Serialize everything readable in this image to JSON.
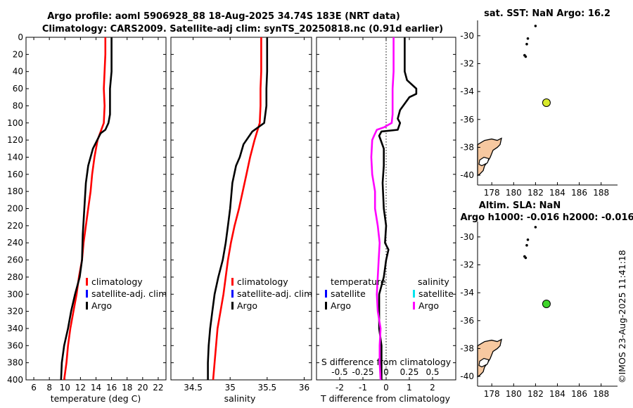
{
  "colors": {
    "argo": "#000000",
    "clim": "#ff0000",
    "sat": "#0000ff",
    "argo_s": "#ff00ff",
    "sat_s": "#00e5ee",
    "land": "#f6c8a0",
    "pt1": "#d8ea2a",
    "pt2": "#3fd52a"
  },
  "header": {
    "title1": "Argo profile: aoml 5906928_88 18-Aug-2025 34.74S 183E (NRT data)",
    "title2": "Climatology: CARS2009. Satellite-adj clim: synTS_20250818.nc (0.91d earlier)"
  },
  "depth_ticks": [
    "0",
    "20",
    "40",
    "60",
    "80",
    "100",
    "120",
    "140",
    "160",
    "180",
    "200",
    "220",
    "240",
    "260",
    "280",
    "300",
    "320",
    "340",
    "360",
    "380",
    "400"
  ],
  "chart_data": [
    {
      "type": "line",
      "name": "temperature-panel",
      "xlabel": "temperature (deg C)",
      "ylabel": "depth",
      "xlim": [
        5,
        23
      ],
      "ylim": [
        400,
        0
      ],
      "xticks": [
        "6",
        "8",
        "10",
        "12",
        "14",
        "16",
        "18",
        "20",
        "22"
      ],
      "legend": {
        "items": [
          {
            "key": "clim",
            "label": "climatology"
          },
          {
            "key": "sat",
            "label": "satellite-adj. clim"
          },
          {
            "key": "argo",
            "label": "Argo"
          }
        ]
      },
      "series": [
        {
          "name": "climatology",
          "key": "clim",
          "points": [
            [
              15.2,
              0
            ],
            [
              15.2,
              20
            ],
            [
              15.1,
              40
            ],
            [
              15.0,
              60
            ],
            [
              15.1,
              80
            ],
            [
              15.0,
              100
            ],
            [
              14.2,
              120
            ],
            [
              13.8,
              140
            ],
            [
              13.5,
              160
            ],
            [
              13.3,
              180
            ],
            [
              13.0,
              200
            ],
            [
              12.7,
              220
            ],
            [
              12.4,
              240
            ],
            [
              12.2,
              260
            ],
            [
              11.8,
              280
            ],
            [
              11.5,
              300
            ],
            [
              11.1,
              320
            ],
            [
              10.7,
              340
            ],
            [
              10.4,
              360
            ],
            [
              10.2,
              380
            ],
            [
              9.9,
              400
            ]
          ]
        },
        {
          "name": "Argo",
          "key": "argo",
          "points": [
            [
              16.0,
              0
            ],
            [
              16.0,
              40
            ],
            [
              15.8,
              60
            ],
            [
              15.8,
              90
            ],
            [
              15.6,
              100
            ],
            [
              15.2,
              108
            ],
            [
              14.6,
              112
            ],
            [
              13.6,
              130
            ],
            [
              13.0,
              150
            ],
            [
              12.7,
              170
            ],
            [
              12.5,
              200
            ],
            [
              12.3,
              230
            ],
            [
              12.2,
              260
            ],
            [
              11.9,
              280
            ],
            [
              11.3,
              300
            ],
            [
              10.8,
              320
            ],
            [
              10.4,
              340
            ],
            [
              9.9,
              360
            ],
            [
              9.6,
              380
            ],
            [
              9.5,
              400
            ]
          ]
        }
      ]
    },
    {
      "type": "line",
      "name": "salinity-panel",
      "xlabel": "salinity",
      "ylabel": "depth",
      "xlim": [
        34.2,
        36.1
      ],
      "ylim": [
        400,
        0
      ],
      "xticks": [
        "34.5",
        "35",
        "35.5",
        "36"
      ],
      "legend": {
        "items": [
          {
            "key": "clim",
            "label": "climatology"
          },
          {
            "key": "sat",
            "label": "satellite-adj. clim"
          },
          {
            "key": "argo",
            "label": "Argo"
          }
        ]
      },
      "series": [
        {
          "name": "climatology",
          "key": "clim",
          "points": [
            [
              35.42,
              0
            ],
            [
              35.42,
              40
            ],
            [
              35.41,
              60
            ],
            [
              35.41,
              80
            ],
            [
              35.4,
              100
            ],
            [
              35.33,
              120
            ],
            [
              35.27,
              140
            ],
            [
              35.22,
              160
            ],
            [
              35.17,
              180
            ],
            [
              35.12,
              200
            ],
            [
              35.06,
              220
            ],
            [
              35.01,
              240
            ],
            [
              34.97,
              260
            ],
            [
              34.94,
              280
            ],
            [
              34.91,
              300
            ],
            [
              34.87,
              320
            ],
            [
              34.83,
              340
            ],
            [
              34.81,
              360
            ],
            [
              34.79,
              380
            ],
            [
              34.77,
              400
            ]
          ]
        },
        {
          "name": "Argo",
          "key": "argo",
          "points": [
            [
              35.5,
              0
            ],
            [
              35.5,
              40
            ],
            [
              35.49,
              60
            ],
            [
              35.49,
              80
            ],
            [
              35.46,
              100
            ],
            [
              35.3,
              110
            ],
            [
              35.18,
              125
            ],
            [
              35.13,
              140
            ],
            [
              35.08,
              150
            ],
            [
              35.03,
              170
            ],
            [
              35.0,
              200
            ],
            [
              34.97,
              220
            ],
            [
              34.94,
              240
            ],
            [
              34.9,
              260
            ],
            [
              34.84,
              280
            ],
            [
              34.79,
              300
            ],
            [
              34.76,
              320
            ],
            [
              34.73,
              340
            ],
            [
              34.71,
              360
            ],
            [
              34.7,
              380
            ],
            [
              34.7,
              400
            ]
          ]
        }
      ]
    },
    {
      "type": "line",
      "name": "difference-panel",
      "xlabel": "T difference from climatology",
      "xlabel_top": "S difference from climatology",
      "xlim": [
        -3,
        3
      ],
      "ylim": [
        400,
        0
      ],
      "xticks": [
        "-2",
        "-1",
        "0",
        "1",
        "2"
      ],
      "xticks_top": [
        "-0.5",
        "-0.25",
        "0",
        "0.25",
        "0.5"
      ],
      "legend": {
        "temp_title": "temperature",
        "sal_title": "salinity",
        "items_t": [
          {
            "key": "sat",
            "label": "satellite"
          },
          {
            "key": "argo",
            "label": "Argo"
          }
        ],
        "items_s": [
          {
            "key": "sat_s",
            "label": "satellite"
          },
          {
            "key": "argo_s",
            "label": "Argo"
          }
        ]
      },
      "series": [
        {
          "name": "T Argo",
          "key": "argo",
          "points": [
            [
              0.8,
              0
            ],
            [
              0.8,
              40
            ],
            [
              0.9,
              50
            ],
            [
              1.3,
              60
            ],
            [
              1.3,
              66
            ],
            [
              1.0,
              70
            ],
            [
              0.6,
              85
            ],
            [
              0.5,
              95
            ],
            [
              0.6,
              100
            ],
            [
              0.5,
              108
            ],
            [
              -0.2,
              110
            ],
            [
              -0.3,
              115
            ],
            [
              -0.1,
              130
            ],
            [
              -0.1,
              150
            ],
            [
              -0.15,
              170
            ],
            [
              -0.1,
              200
            ],
            [
              0.0,
              220
            ],
            [
              -0.05,
              240
            ],
            [
              0.1,
              248
            ],
            [
              0.0,
              260
            ],
            [
              -0.1,
              280
            ],
            [
              -0.3,
              300
            ],
            [
              -0.3,
              320
            ],
            [
              -0.3,
              340
            ],
            [
              -0.2,
              360
            ],
            [
              -0.2,
              380
            ],
            [
              -0.2,
              400
            ]
          ]
        },
        {
          "name": "S Argo",
          "key": "argo_s",
          "points": [
            [
              0.08,
              0
            ],
            [
              0.08,
              40
            ],
            [
              0.07,
              60
            ],
            [
              0.07,
              90
            ],
            [
              0.06,
              100
            ],
            [
              -0.02,
              105
            ],
            [
              -0.1,
              108
            ],
            [
              -0.13,
              115
            ],
            [
              -0.15,
              120
            ],
            [
              -0.16,
              140
            ],
            [
              -0.15,
              160
            ],
            [
              -0.12,
              180
            ],
            [
              -0.12,
              200
            ],
            [
              -0.09,
              220
            ],
            [
              -0.07,
              240
            ],
            [
              -0.08,
              260
            ],
            [
              -0.09,
              280
            ],
            [
              -0.1,
              300
            ],
            [
              -0.09,
              320
            ],
            [
              -0.06,
              340
            ],
            [
              -0.07,
              360
            ],
            [
              -0.07,
              380
            ],
            [
              -0.06,
              400
            ]
          ]
        }
      ]
    },
    {
      "type": "scatter",
      "name": "sst-map",
      "title": "sat. SST: NaN Argo: 16.2",
      "xlim": [
        176.7,
        189.5
      ],
      "ylim": [
        -40.7,
        -28.9
      ],
      "xticks": [
        "178",
        "180",
        "182",
        "184",
        "186",
        "188"
      ],
      "yticks": [
        "-30",
        "-32",
        "-34",
        "-36",
        "-38",
        "-40"
      ],
      "track": [
        [
          182.0,
          -29.3
        ],
        [
          181.3,
          -30.2
        ],
        [
          181.2,
          -30.6
        ],
        [
          181.0,
          -31.4
        ],
        [
          181.1,
          -31.5
        ]
      ],
      "argo_point": [
        183.0,
        -34.8
      ],
      "argo_color_key": "pt1"
    },
    {
      "type": "scatter",
      "name": "sla-map",
      "title1": "Altim. SLA: NaN",
      "title2": "Argo h1000: -0.016 h2000: -0.016",
      "xlim": [
        176.7,
        189.5
      ],
      "ylim": [
        -40.7,
        -28.9
      ],
      "xticks": [
        "178",
        "180",
        "182",
        "184",
        "186",
        "188"
      ],
      "yticks": [
        "-30",
        "-32",
        "-34",
        "-36",
        "-38",
        "-40"
      ],
      "track": [
        [
          182.0,
          -29.3
        ],
        [
          181.3,
          -30.2
        ],
        [
          181.2,
          -30.6
        ],
        [
          181.0,
          -31.4
        ],
        [
          181.1,
          -31.5
        ]
      ],
      "argo_point": [
        183.0,
        -34.8
      ],
      "argo_color_key": "pt2"
    }
  ],
  "footer": {
    "stamp": "©IMOS 23-Aug-2025 11:41:18"
  }
}
